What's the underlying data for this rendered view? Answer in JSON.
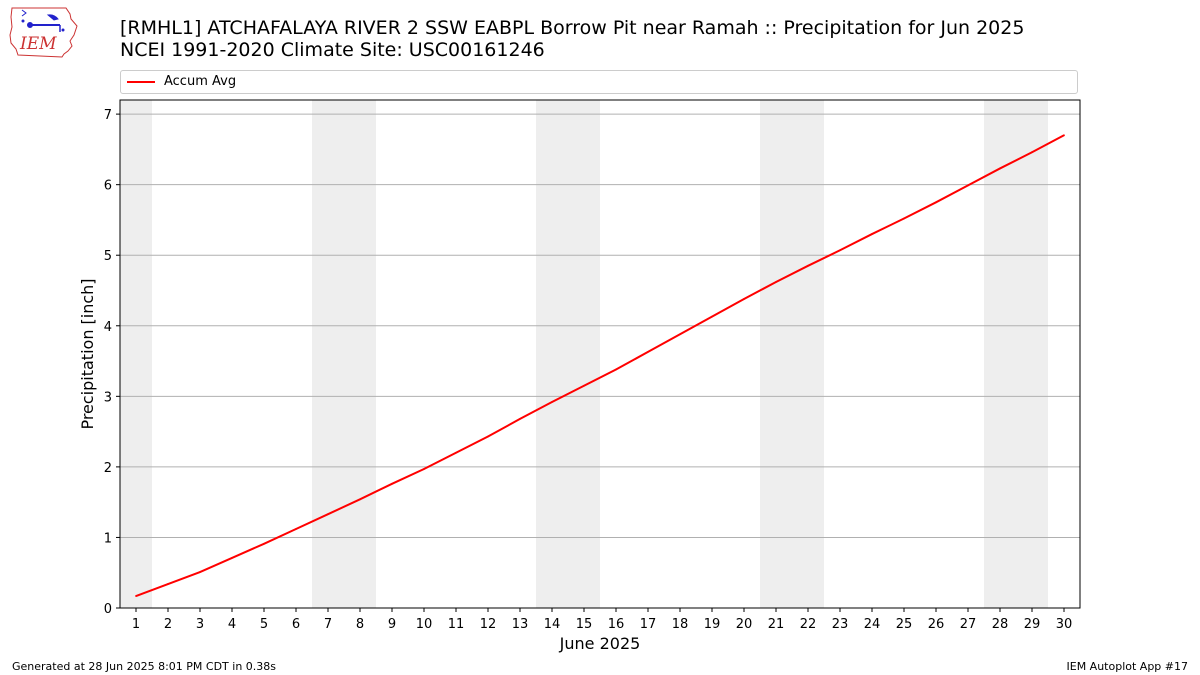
{
  "header": {
    "logo_text": "IEM",
    "title_line1": "[RMHL1] ATCHAFALAYA RIVER 2 SSW EABPL Borrow Pit near Ramah :: Precipitation for Jun 2025",
    "title_line2": "NCEI 1991-2020 Climate Site: USC00161246"
  },
  "footer": {
    "left": "Generated at 28 Jun 2025 8:01 PM CDT in 0.38s",
    "right": "IEM Autoplot App #17"
  },
  "colors": {
    "series": "#ff0000",
    "weekend_band": "#eeeeee",
    "grid": "#b0b0b0",
    "logo_outline": "#cc3333",
    "logo_symbol": "#2222cc"
  },
  "chart_data": {
    "type": "line",
    "title": "[RMHL1] ATCHAFALAYA RIVER 2 SSW EABPL Borrow Pit near Ramah :: Precipitation for Jun 2025",
    "subtitle": "NCEI 1991-2020 Climate Site: USC00161246",
    "xlabel": "June 2025",
    "ylabel": "Precipitation [inch]",
    "x": [
      1,
      2,
      3,
      4,
      5,
      6,
      7,
      8,
      9,
      10,
      11,
      12,
      13,
      14,
      15,
      16,
      17,
      18,
      19,
      20,
      21,
      22,
      23,
      24,
      25,
      26,
      27,
      28,
      29,
      30
    ],
    "x_ticks": [
      "1",
      "2",
      "3",
      "4",
      "5",
      "6",
      "7",
      "8",
      "9",
      "10",
      "11",
      "12",
      "13",
      "14",
      "15",
      "16",
      "17",
      "18",
      "19",
      "20",
      "21",
      "22",
      "23",
      "24",
      "25",
      "26",
      "27",
      "28",
      "29",
      "30"
    ],
    "xlim": [
      0.5,
      30.5
    ],
    "ylim": [
      0,
      7.2
    ],
    "y_ticks": [
      0,
      1,
      2,
      3,
      4,
      5,
      6,
      7
    ],
    "grid": "horizontal",
    "legend_position": "top, above plot",
    "weekend_bands": [
      [
        0.5,
        1.5
      ],
      [
        6.5,
        8.5
      ],
      [
        13.5,
        15.5
      ],
      [
        20.5,
        22.5
      ],
      [
        27.5,
        29.5
      ]
    ],
    "series": [
      {
        "name": "Accum Avg",
        "color": "#ff0000",
        "values": [
          0.17,
          0.34,
          0.51,
          0.71,
          0.91,
          1.12,
          1.33,
          1.54,
          1.76,
          1.97,
          2.2,
          2.43,
          2.68,
          2.92,
          3.15,
          3.38,
          3.63,
          3.88,
          4.13,
          4.38,
          4.62,
          4.85,
          5.07,
          5.3,
          5.52,
          5.75,
          5.99,
          6.23,
          6.46,
          6.7
        ]
      }
    ]
  }
}
